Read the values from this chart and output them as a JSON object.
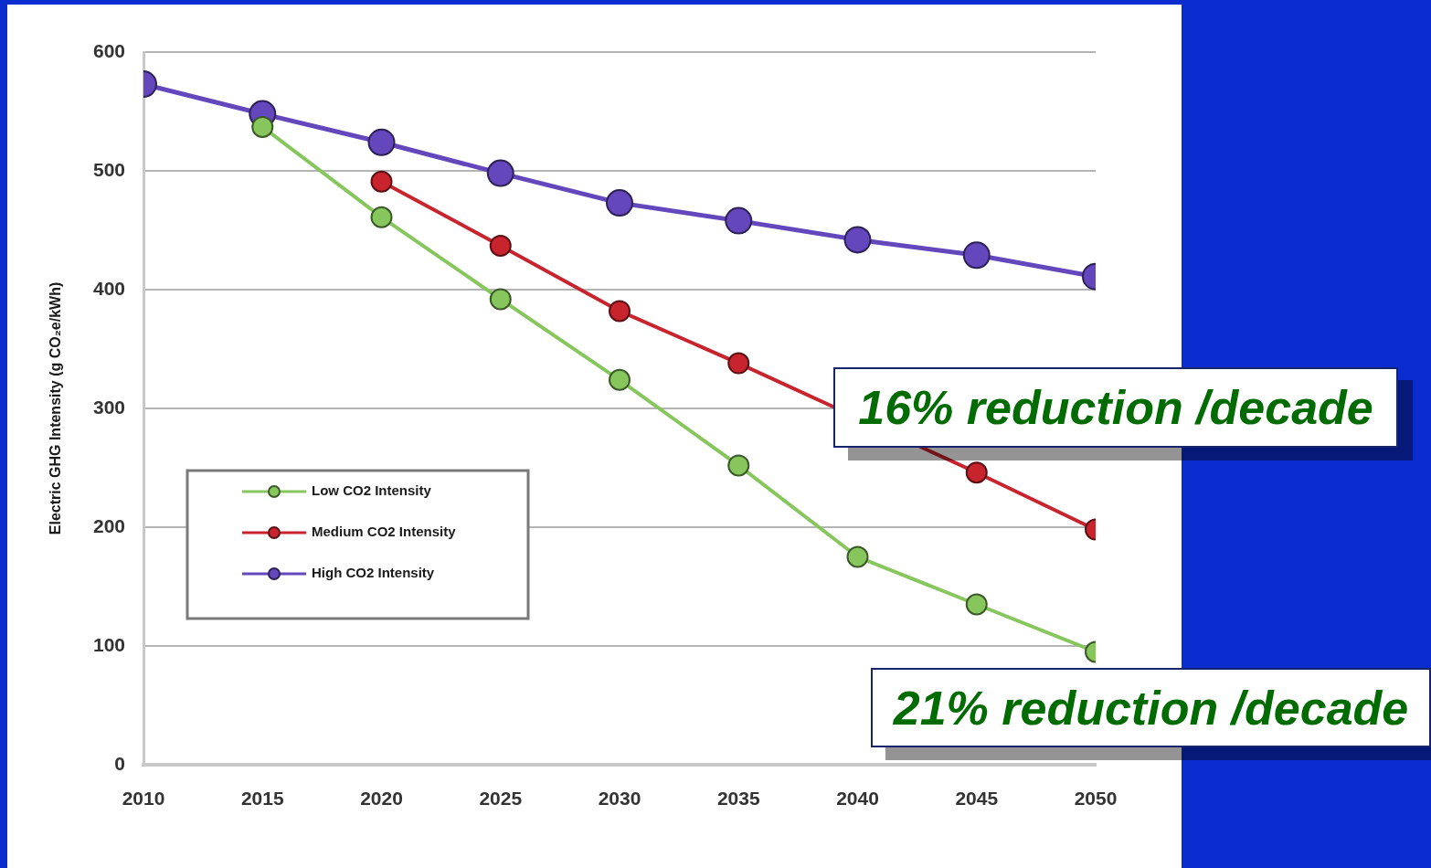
{
  "chart_data": {
    "type": "line",
    "ylabel": "Electric GHG Intensity (g CO₂e/kWh)",
    "x": [
      2010,
      2015,
      2020,
      2025,
      2030,
      2035,
      2040,
      2045,
      2050
    ],
    "xlim": [
      2010,
      2050
    ],
    "xticks": [
      2010,
      2015,
      2020,
      2025,
      2030,
      2035,
      2040,
      2045,
      2050
    ],
    "ylim": [
      0,
      600
    ],
    "yticks": [
      0,
      100,
      200,
      300,
      400,
      500,
      600
    ],
    "series": [
      {
        "name": "Low CO2 Intensity",
        "color": "#86c65c",
        "values": [
          null,
          537,
          461,
          392,
          324,
          252,
          175,
          135,
          95
        ]
      },
      {
        "name": "Medium CO2 Intensity",
        "color": "#c8242e",
        "values": [
          null,
          null,
          491,
          437,
          382,
          338,
          null,
          246,
          198
        ]
      },
      {
        "name": "High CO2 Intensity",
        "color": "#6447bd",
        "values": [
          573,
          548,
          524,
          498,
          473,
          458,
          442,
          429,
          411
        ]
      }
    ],
    "grid": "y",
    "legend": "bottom left",
    "marker": "circle",
    "line_style": "solid",
    "annotations": [
      "16% reduction /decade",
      "21% reduction /decade"
    ]
  }
}
